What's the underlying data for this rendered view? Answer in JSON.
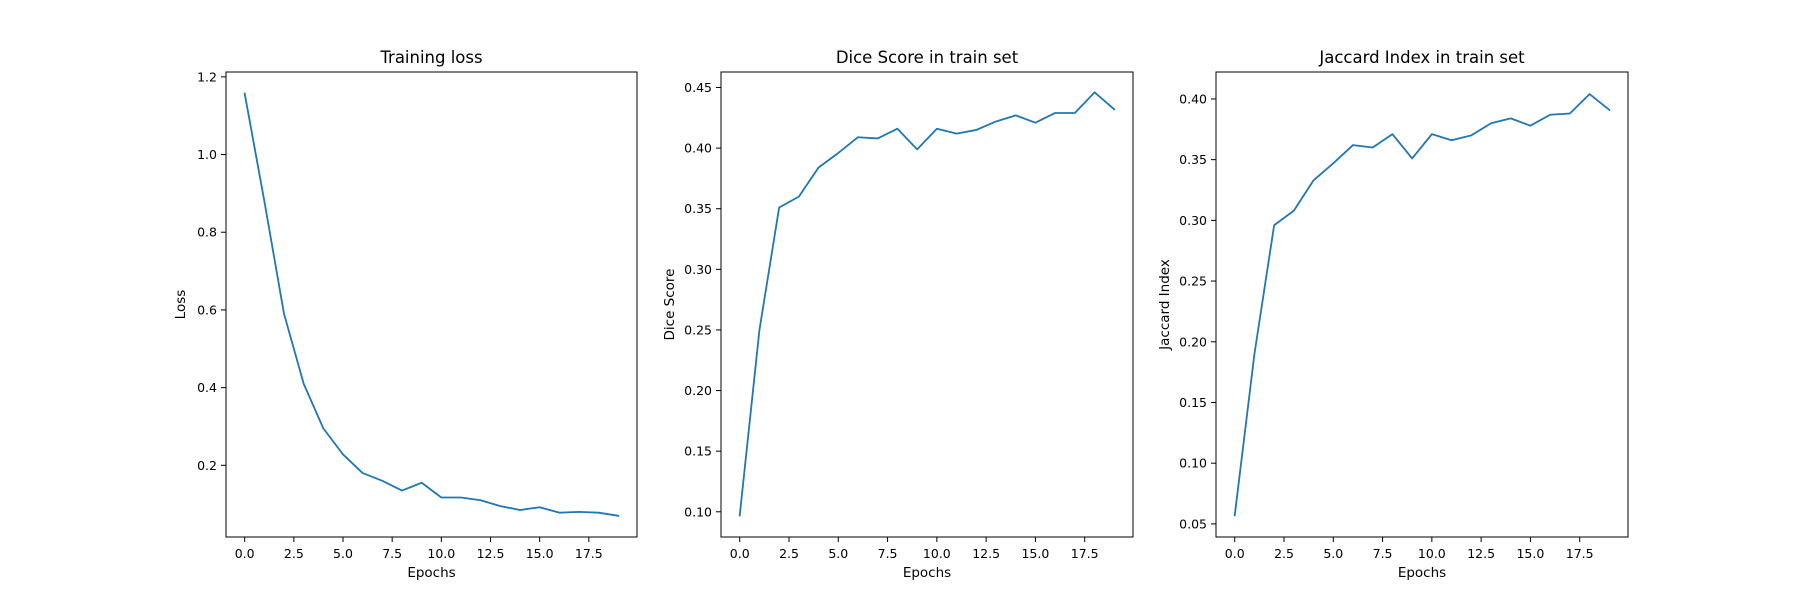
{
  "figure": {
    "line_color": "#1f77b4",
    "axis_color": "#000000",
    "background": "#ffffff"
  },
  "chart_data": [
    {
      "type": "line",
      "title": "Training loss",
      "xlabel": "Epochs",
      "ylabel": "Loss",
      "xlim": [
        -0.95,
        19.95
      ],
      "ylim": [
        0.0154,
        1.2125
      ],
      "xticks": [
        0.0,
        2.5,
        5.0,
        7.5,
        10.0,
        12.5,
        15.0,
        17.5
      ],
      "xtick_labels": [
        "0.0",
        "2.5",
        "5.0",
        "7.5",
        "10.0",
        "12.5",
        "15.0",
        "17.5"
      ],
      "yticks": [
        0.2,
        0.4,
        0.6,
        0.8,
        1.0,
        1.2
      ],
      "ytick_labels": [
        "0.2",
        "0.4",
        "0.6",
        "0.8",
        "1.0",
        "1.2"
      ],
      "grid": false,
      "series": [
        {
          "x": [
            0,
            1,
            2,
            3,
            4,
            5,
            6,
            7,
            8,
            9,
            10,
            11,
            12,
            13,
            14,
            15,
            16,
            17,
            18,
            19
          ],
          "values": [
            1.157,
            0.88,
            0.59,
            0.41,
            0.295,
            0.228,
            0.18,
            0.16,
            0.135,
            0.155,
            0.117,
            0.117,
            0.11,
            0.095,
            0.085,
            0.092,
            0.078,
            0.08,
            0.078,
            0.07
          ]
        }
      ]
    },
    {
      "type": "line",
      "title": "Dice Score in train set",
      "xlabel": "Epochs",
      "ylabel": "Dice Score",
      "xlim": [
        -0.95,
        19.95
      ],
      "ylim": [
        0.0792,
        0.4628
      ],
      "xticks": [
        0.0,
        2.5,
        5.0,
        7.5,
        10.0,
        12.5,
        15.0,
        17.5
      ],
      "xtick_labels": [
        "0.0",
        "2.5",
        "5.0",
        "7.5",
        "10.0",
        "12.5",
        "15.0",
        "17.5"
      ],
      "yticks": [
        0.1,
        0.15,
        0.2,
        0.25,
        0.3,
        0.35,
        0.4,
        0.45
      ],
      "ytick_labels": [
        "0.10",
        "0.15",
        "0.20",
        "0.25",
        "0.30",
        "0.35",
        "0.40",
        "0.45"
      ],
      "grid": false,
      "series": [
        {
          "x": [
            0,
            1,
            2,
            3,
            4,
            5,
            6,
            7,
            8,
            9,
            10,
            11,
            12,
            13,
            14,
            15,
            16,
            17,
            18,
            19
          ],
          "values": [
            0.097,
            0.25,
            0.351,
            0.36,
            0.384,
            0.396,
            0.409,
            0.408,
            0.416,
            0.399,
            0.416,
            0.412,
            0.415,
            0.422,
            0.427,
            0.421,
            0.429,
            0.429,
            0.446,
            0.432
          ]
        }
      ]
    },
    {
      "type": "line",
      "title": "Jaccard Index in train set",
      "xlabel": "Epochs",
      "ylabel": "Jaccard Index",
      "xlim": [
        -0.95,
        19.95
      ],
      "ylim": [
        0.0392,
        0.4222
      ],
      "xticks": [
        0.0,
        2.5,
        5.0,
        7.5,
        10.0,
        12.5,
        15.0,
        17.5
      ],
      "xtick_labels": [
        "0.0",
        "2.5",
        "5.0",
        "7.5",
        "10.0",
        "12.5",
        "15.0",
        "17.5"
      ],
      "yticks": [
        0.05,
        0.1,
        0.15,
        0.2,
        0.25,
        0.3,
        0.35,
        0.4
      ],
      "ytick_labels": [
        "0.05",
        "0.10",
        "0.15",
        "0.20",
        "0.25",
        "0.30",
        "0.35",
        "0.40"
      ],
      "grid": false,
      "series": [
        {
          "x": [
            0,
            1,
            2,
            3,
            4,
            5,
            6,
            7,
            8,
            9,
            10,
            11,
            12,
            13,
            14,
            15,
            16,
            17,
            18,
            19
          ],
          "values": [
            0.057,
            0.19,
            0.296,
            0.308,
            0.333,
            0.347,
            0.362,
            0.36,
            0.371,
            0.351,
            0.371,
            0.366,
            0.37,
            0.38,
            0.384,
            0.378,
            0.387,
            0.388,
            0.404,
            0.391
          ]
        }
      ]
    }
  ]
}
